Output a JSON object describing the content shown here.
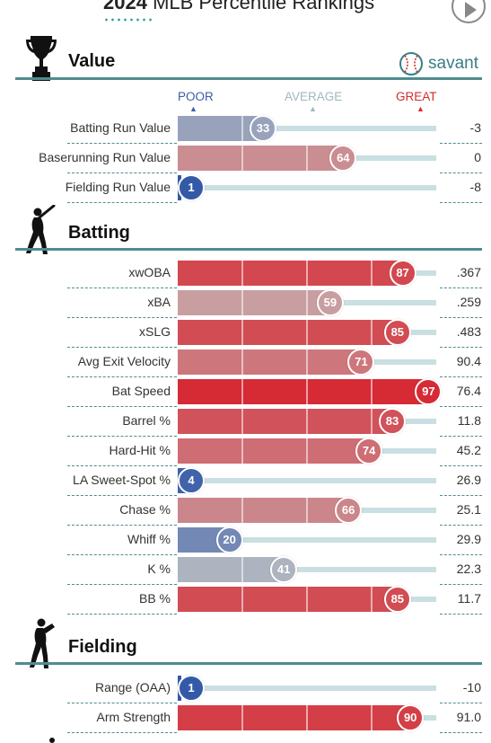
{
  "header": {
    "title_year": "2024",
    "title_rest": " MLB Percentile Rankings"
  },
  "brand": {
    "name": "savant",
    "icon": "baseball-icon"
  },
  "scale": {
    "poor": "POOR",
    "average": "AVERAGE",
    "great": "GREAT",
    "poor_color": "#3a5ea8",
    "average_color": "#9fb8bf",
    "great_color": "#d22d2d"
  },
  "sections": [
    {
      "title": "Value",
      "icon": "trophy-icon"
    },
    {
      "title": "Batting",
      "icon": "batter-icon"
    },
    {
      "title": "Fielding",
      "icon": "fielder-icon"
    }
  ],
  "chart_data": {
    "type": "bar",
    "xlim": [
      0,
      100
    ],
    "groups": [
      {
        "section": "Value",
        "categories": [
          "Batting Run Value",
          "Baserunning Run Value",
          "Fielding Run Value"
        ],
        "percentiles": [
          33,
          64,
          1
        ],
        "values": [
          "-3",
          "0",
          "-8"
        ]
      },
      {
        "section": "Batting",
        "categories": [
          "xwOBA",
          "xBA",
          "xSLG",
          "Avg Exit Velocity",
          "Bat Speed",
          "Barrel %",
          "Hard-Hit %",
          "LA Sweet-Spot %",
          "Chase %",
          "Whiff %",
          "K %",
          "BB %"
        ],
        "percentiles": [
          87,
          59,
          85,
          71,
          97,
          83,
          74,
          4,
          66,
          20,
          41,
          85
        ],
        "values": [
          ".367",
          ".259",
          ".483",
          "90.4",
          "76.4",
          "11.8",
          "45.2",
          "26.9",
          "25.1",
          "29.9",
          "22.3",
          "11.7"
        ]
      },
      {
        "section": "Fielding",
        "categories": [
          "Range (OAA)",
          "Arm Strength"
        ],
        "percentiles": [
          1,
          90
        ],
        "values": [
          "-10",
          "91.0"
        ]
      }
    ]
  }
}
